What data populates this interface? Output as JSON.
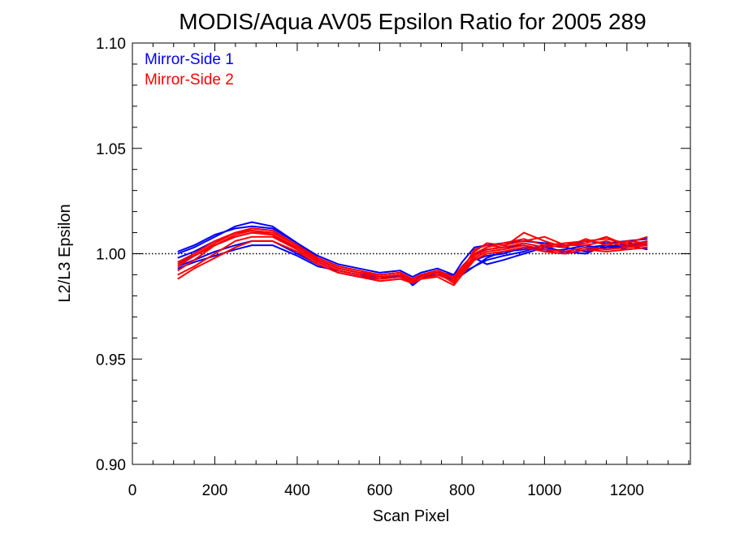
{
  "chart_data": {
    "type": "line",
    "title": "MODIS/Aqua AV05 Epsilon Ratio for 2005 289",
    "xlabel": "Scan Pixel",
    "ylabel": "L2/L3 Epsilon",
    "xlim": [
      0,
      1354
    ],
    "ylim": [
      0.9,
      1.1
    ],
    "x_ticks": [
      "0",
      "200",
      "400",
      "600",
      "800",
      "1000",
      "1200"
    ],
    "y_ticks": [
      "0.90",
      "0.95",
      "1.00",
      "1.05",
      "1.10"
    ],
    "reference_line": {
      "y": 1.0,
      "style": "dotted",
      "color": "#000000"
    },
    "grid": false,
    "legend_position": "top-left",
    "x": [
      110,
      150,
      200,
      250,
      290,
      340,
      400,
      450,
      500,
      550,
      600,
      650,
      680,
      700,
      740,
      780,
      800,
      830,
      860,
      900,
      950,
      1000,
      1050,
      1100,
      1150,
      1200,
      1250
    ],
    "series": [
      {
        "name": "Mirror-Side 1",
        "color": "#0000ff",
        "lines": [
          [
            1.0,
            1.003,
            1.008,
            1.013,
            1.015,
            1.013,
            1.005,
            0.998,
            0.994,
            0.992,
            0.99,
            0.991,
            0.985,
            0.988,
            0.99,
            0.987,
            0.992,
            0.997,
            0.999,
            1.0,
            1.003,
            1.002,
            1.001,
            1.003,
            1.004,
            1.003,
            1.006
          ],
          [
            0.998,
            1.001,
            1.006,
            1.01,
            1.012,
            1.011,
            1.004,
            0.997,
            0.993,
            0.991,
            0.989,
            0.99,
            0.987,
            0.989,
            0.991,
            0.988,
            0.99,
            0.994,
            0.997,
            0.999,
            1.001,
            1.004,
            1.0,
            1.002,
            1.003,
            1.005,
            1.004
          ],
          [
            0.996,
            0.999,
            1.004,
            1.008,
            1.01,
            1.009,
            1.002,
            0.996,
            0.992,
            0.99,
            0.989,
            0.989,
            0.986,
            0.99,
            0.992,
            0.989,
            0.994,
            1.0,
            1.002,
            1.003,
            1.004,
            1.001,
            1.002,
            1.004,
            1.002,
            1.004,
            1.005
          ],
          [
            0.994,
            0.997,
            1.001,
            1.004,
            1.006,
            1.006,
            1.0,
            0.995,
            0.991,
            0.989,
            0.988,
            0.99,
            0.987,
            0.989,
            0.99,
            0.988,
            0.993,
            0.998,
            0.995,
            0.997,
            1.0,
            1.003,
            1.001,
            1.0,
            1.004,
            1.002,
            1.003
          ],
          [
            0.993,
            0.996,
            0.999,
            1.002,
            1.004,
            1.004,
            0.999,
            0.994,
            0.992,
            0.99,
            0.988,
            0.989,
            0.988,
            0.99,
            0.991,
            0.99,
            0.991,
            0.994,
            0.998,
            1.001,
            1.002,
            1.004,
            1.003,
            1.001,
            1.003,
            1.004,
            1.002
          ],
          [
            1.001,
            1.004,
            1.009,
            1.012,
            1.013,
            1.012,
            1.005,
            0.999,
            0.995,
            0.993,
            0.991,
            0.992,
            0.989,
            0.991,
            0.993,
            0.99,
            0.996,
            1.003,
            1.004,
            1.005,
            1.006,
            1.005,
            1.004,
            1.006,
            1.005,
            1.006,
            1.007
          ]
        ]
      },
      {
        "name": "Mirror-Side 2",
        "color": "#ff0000",
        "lines": [
          [
            0.992,
            0.997,
            1.004,
            1.009,
            1.011,
            1.01,
            1.004,
            0.998,
            0.994,
            0.992,
            0.99,
            0.991,
            0.988,
            0.99,
            0.992,
            0.989,
            0.994,
            1.0,
            1.003,
            1.005,
            1.007,
            1.004,
            1.005,
            1.006,
            1.007,
            1.005,
            1.008
          ],
          [
            0.994,
            0.999,
            1.005,
            1.01,
            1.012,
            1.011,
            1.004,
            0.997,
            0.993,
            0.991,
            0.989,
            0.99,
            0.987,
            0.989,
            0.991,
            0.986,
            0.992,
            1.002,
            1.004,
            1.003,
            1.01,
            1.006,
            1.003,
            1.007,
            1.004,
            1.006,
            1.005
          ],
          [
            0.99,
            0.994,
            1.0,
            1.006,
            1.008,
            1.008,
            1.002,
            0.996,
            0.992,
            0.99,
            0.988,
            0.989,
            0.986,
            0.988,
            0.99,
            0.987,
            0.991,
            0.998,
            1.001,
            1.002,
            1.004,
            1.002,
            1.001,
            1.003,
            1.002,
            1.003,
            1.004
          ],
          [
            0.996,
            1.0,
            1.006,
            1.01,
            1.011,
            1.009,
            1.003,
            0.997,
            0.993,
            0.991,
            0.989,
            0.99,
            0.988,
            0.99,
            0.992,
            0.988,
            0.993,
            1.001,
            1.005,
            1.004,
            1.006,
            1.008,
            1.004,
            1.005,
            1.008,
            1.004,
            1.006
          ],
          [
            0.988,
            0.993,
            0.998,
            1.003,
            1.006,
            1.006,
            1.001,
            0.995,
            0.991,
            0.989,
            0.987,
            0.988,
            0.986,
            0.988,
            0.989,
            0.985,
            0.99,
            0.997,
            1.0,
            1.001,
            1.003,
            1.001,
            1.0,
            1.002,
            1.001,
            1.002,
            1.003
          ],
          [
            0.995,
            0.999,
            1.004,
            1.008,
            1.01,
            1.009,
            1.003,
            0.997,
            0.993,
            0.991,
            0.99,
            0.991,
            0.988,
            0.99,
            0.991,
            0.988,
            0.992,
            0.999,
            1.002,
            1.003,
            1.005,
            1.003,
            1.004,
            1.004,
            1.006,
            1.003,
            1.005
          ]
        ]
      }
    ]
  }
}
